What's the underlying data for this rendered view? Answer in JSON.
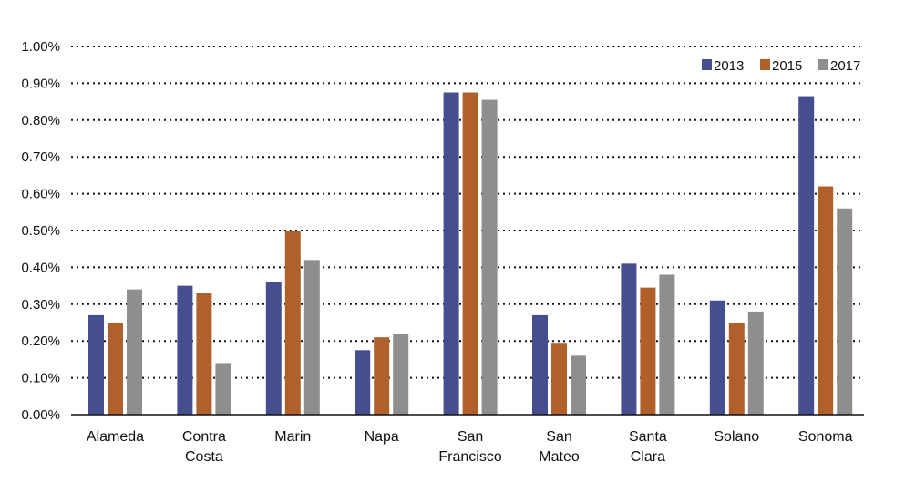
{
  "chart_data": {
    "type": "bar",
    "title": "",
    "xlabel": "",
    "ylabel": "",
    "ylim": [
      0,
      1.0
    ],
    "y_ticks": [
      "0.00%",
      "0.10%",
      "0.20%",
      "0.30%",
      "0.40%",
      "0.50%",
      "0.60%",
      "0.70%",
      "0.80%",
      "0.90%",
      "1.00%"
    ],
    "grid": true,
    "legend_position": "top-right",
    "categories": [
      [
        "Alameda"
      ],
      [
        "Contra",
        "Costa"
      ],
      [
        "Marin"
      ],
      [
        "Napa"
      ],
      [
        "San",
        "Francisco"
      ],
      [
        "San",
        "Mateo"
      ],
      [
        "Santa",
        "Clara"
      ],
      [
        "Solano"
      ],
      [
        "Sonoma"
      ]
    ],
    "series": [
      {
        "name": "2013",
        "color": "#454f8f",
        "values": [
          0.27,
          0.35,
          0.36,
          0.175,
          0.875,
          0.27,
          0.41,
          0.31,
          0.865
        ]
      },
      {
        "name": "2015",
        "color": "#b0602b",
        "values": [
          0.25,
          0.33,
          0.5,
          0.21,
          0.875,
          0.195,
          0.345,
          0.25,
          0.62
        ]
      },
      {
        "name": "2017",
        "color": "#8e8e8e",
        "values": [
          0.34,
          0.14,
          0.42,
          0.22,
          0.855,
          0.16,
          0.38,
          0.28,
          0.56
        ]
      }
    ]
  }
}
